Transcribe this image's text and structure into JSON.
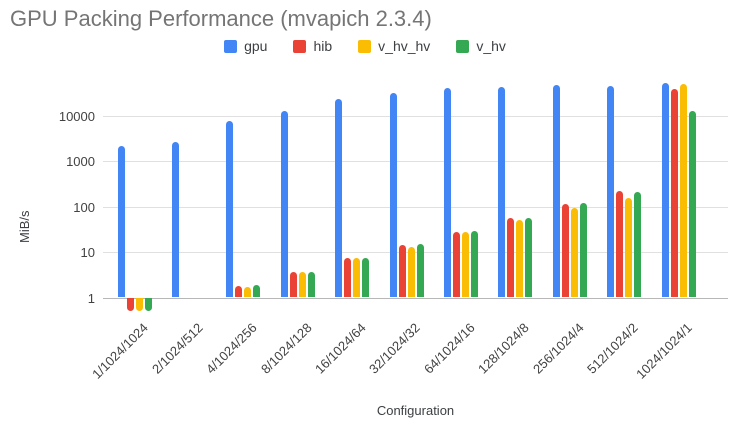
{
  "chart_data": {
    "type": "bar",
    "title": "GPU Packing Performance (mvapich 2.3.4)",
    "xlabel": "Configuration",
    "ylabel": "MiB/s",
    "y_scale": "log",
    "y_tick_labels": [
      "1",
      "10",
      "100",
      "1000",
      "10000"
    ],
    "y_ticks": [
      1,
      10,
      100,
      1000,
      10000
    ],
    "ylim": [
      0.46,
      77000
    ],
    "baseline_value": 1,
    "grid": "horizontal",
    "legend_position": "top",
    "categories": [
      "1/1024/1024",
      "2/1024/512",
      "4/1024/256",
      "8/1024/128",
      "16/1024/64",
      "32/1024/32",
      "64/1024/16",
      "128/1024/8",
      "256/1024/4",
      "512/1024/2",
      "1024/1024/1"
    ],
    "series": [
      {
        "name": "gpu",
        "color": "#4285F4",
        "values": [
          2100,
          2600,
          7500,
          12500,
          23000,
          32000,
          40000,
          42000,
          47000,
          45500,
          51000
        ]
      },
      {
        "name": "hib",
        "color": "#EA4335",
        "values": [
          0.5,
          1,
          1.8,
          3.7,
          7.5,
          14.5,
          28,
          56,
          115,
          220,
          39000
        ]
      },
      {
        "name": "v_hv_hv",
        "color": "#FBBC04",
        "values": [
          0.5,
          1,
          1.7,
          3.6,
          7.2,
          13,
          27,
          50,
          95,
          155,
          50000
        ]
      },
      {
        "name": "v_hv",
        "color": "#34A853",
        "values": [
          0.5,
          1,
          1.9,
          3.6,
          7.5,
          15,
          29,
          57,
          117,
          210,
          12500
        ]
      }
    ]
  }
}
